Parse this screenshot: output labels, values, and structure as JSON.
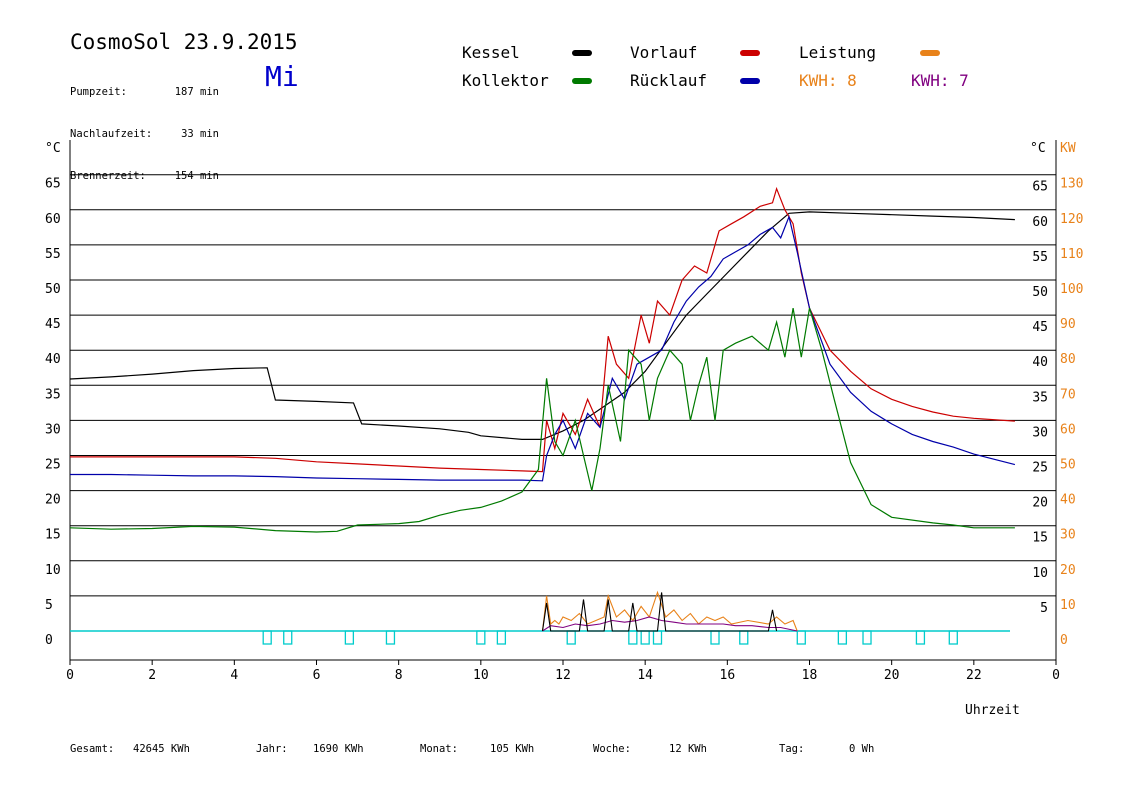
{
  "header": {
    "title": "CosmoSol 23.9.2015",
    "weekday": "Mi",
    "info": [
      {
        "label": "Pumpzeit:",
        "value": "187 min"
      },
      {
        "label": "Nachlaufzeit:",
        "value": "33 min"
      },
      {
        "label": "Brennerzeit:",
        "value": "154 min"
      }
    ]
  },
  "legend": {
    "kessel": "Kessel",
    "kollektor": "Kollektor",
    "vorlauf": "Vorlauf",
    "ruecklauf": "Rücklauf",
    "leistung": "Leistung",
    "kwh1": "KWH: 8",
    "kwh2": "KWH: 7"
  },
  "colors": {
    "kessel": "#000000",
    "kollektor": "#007a00",
    "vorlauf": "#cc0000",
    "ruecklauf": "#0000aa",
    "leistung": "#e8821a",
    "kwh2": "#800080",
    "pump": "#00cccc"
  },
  "footer": {
    "gesamt_label": "Gesamt:",
    "gesamt_value": "42645 KWh",
    "jahr_label": "Jahr:",
    "jahr_value": "1690 KWh",
    "monat_label": "Monat:",
    "monat_value": "105 KWh",
    "woche_label": "Woche:",
    "woche_value": "12 KWh",
    "tag_label": "Tag:",
    "tag_value": "0 Wh"
  },
  "chart_data": {
    "type": "line",
    "xlabel": "Uhrzeit",
    "ylabel_left": "°C",
    "ylabel_right_1": "°C",
    "ylabel_right_2": "KW",
    "xlim": [
      0,
      24
    ],
    "ylim": [
      0,
      65
    ],
    "x_ticks": [
      "0",
      "2",
      "4",
      "6",
      "8",
      "10",
      "12",
      "14",
      "16",
      "18",
      "20",
      "22",
      "0"
    ],
    "y_ticks_left": [
      "0",
      "5",
      "10",
      "15",
      "20",
      "25",
      "30",
      "35",
      "40",
      "45",
      "50",
      "55",
      "60",
      "65"
    ],
    "y_ticks_right": [
      "5",
      "10",
      "15",
      "20",
      "25",
      "30",
      "35",
      "40",
      "45",
      "50",
      "55",
      "60",
      "65"
    ],
    "y_ticks_kw": [
      "0",
      "10",
      "20",
      "30",
      "40",
      "50",
      "60",
      "70",
      "80",
      "90",
      "100",
      "110",
      "120",
      "130"
    ],
    "grid": true,
    "series": [
      {
        "name": "Kessel",
        "color": "#000000",
        "points": [
          [
            0,
            35.9
          ],
          [
            1,
            36.2
          ],
          [
            2,
            36.6
          ],
          [
            3,
            37.1
          ],
          [
            4,
            37.4
          ],
          [
            4.8,
            37.5
          ],
          [
            5,
            32.9
          ],
          [
            6,
            32.7
          ],
          [
            6.9,
            32.5
          ],
          [
            7.1,
            29.5
          ],
          [
            8,
            29.2
          ],
          [
            9,
            28.8
          ],
          [
            9.7,
            28.3
          ],
          [
            10,
            27.8
          ],
          [
            11,
            27.3
          ],
          [
            11.5,
            27.3
          ],
          [
            12,
            28.5
          ],
          [
            12.5,
            30
          ],
          [
            13,
            32
          ],
          [
            13.5,
            34
          ],
          [
            14,
            37
          ],
          [
            14.5,
            41
          ],
          [
            15,
            45
          ],
          [
            15.5,
            48
          ],
          [
            16,
            51
          ],
          [
            16.5,
            54
          ],
          [
            17,
            57
          ],
          [
            17.5,
            59.5
          ],
          [
            18,
            59.7
          ],
          [
            19,
            59.5
          ],
          [
            20,
            59.3
          ],
          [
            21,
            59.1
          ],
          [
            22,
            58.9
          ],
          [
            23,
            58.6
          ]
        ]
      },
      {
        "name": "Vorlauf",
        "color": "#cc0000",
        "points": [
          [
            0,
            24.8
          ],
          [
            1,
            24.8
          ],
          [
            2,
            24.8
          ],
          [
            3,
            24.8
          ],
          [
            4,
            24.8
          ],
          [
            5,
            24.6
          ],
          [
            6,
            24.1
          ],
          [
            7,
            23.8
          ],
          [
            8,
            23.5
          ],
          [
            9,
            23.2
          ],
          [
            10,
            23.0
          ],
          [
            11,
            22.8
          ],
          [
            11.5,
            22.7
          ],
          [
            11.6,
            30
          ],
          [
            11.8,
            26
          ],
          [
            12,
            31
          ],
          [
            12.3,
            28
          ],
          [
            12.6,
            33
          ],
          [
            12.9,
            29
          ],
          [
            13.1,
            42
          ],
          [
            13.3,
            38
          ],
          [
            13.6,
            36
          ],
          [
            13.9,
            45
          ],
          [
            14.1,
            41
          ],
          [
            14.3,
            47
          ],
          [
            14.6,
            45
          ],
          [
            14.9,
            50
          ],
          [
            15.2,
            52
          ],
          [
            15.5,
            51
          ],
          [
            15.8,
            57
          ],
          [
            16.1,
            58
          ],
          [
            16.4,
            59
          ],
          [
            16.8,
            60.5
          ],
          [
            17.1,
            61
          ],
          [
            17.2,
            63
          ],
          [
            17.4,
            60
          ],
          [
            17.6,
            58
          ],
          [
            17.8,
            51
          ],
          [
            18,
            46
          ],
          [
            18.5,
            40
          ],
          [
            19,
            37
          ],
          [
            19.5,
            34.5
          ],
          [
            20,
            33
          ],
          [
            20.5,
            32
          ],
          [
            21,
            31.2
          ],
          [
            21.5,
            30.6
          ],
          [
            22,
            30.3
          ],
          [
            23,
            29.9
          ]
        ]
      },
      {
        "name": "Rücklauf",
        "color": "#0000aa",
        "points": [
          [
            0,
            22.3
          ],
          [
            1,
            22.3
          ],
          [
            2,
            22.2
          ],
          [
            3,
            22.1
          ],
          [
            4,
            22.1
          ],
          [
            5,
            22.0
          ],
          [
            6,
            21.8
          ],
          [
            7,
            21.7
          ],
          [
            8,
            21.6
          ],
          [
            9,
            21.5
          ],
          [
            10,
            21.5
          ],
          [
            11,
            21.5
          ],
          [
            11.5,
            21.4
          ],
          [
            11.6,
            25
          ],
          [
            11.8,
            28
          ],
          [
            12,
            30
          ],
          [
            12.3,
            26
          ],
          [
            12.6,
            31
          ],
          [
            12.9,
            29
          ],
          [
            13.2,
            36
          ],
          [
            13.5,
            33
          ],
          [
            13.8,
            38
          ],
          [
            14.1,
            39
          ],
          [
            14.4,
            40
          ],
          [
            14.7,
            44
          ],
          [
            15,
            47
          ],
          [
            15.3,
            49
          ],
          [
            15.6,
            50.5
          ],
          [
            15.9,
            53
          ],
          [
            16.2,
            54
          ],
          [
            16.5,
            55
          ],
          [
            16.8,
            56.5
          ],
          [
            17.1,
            57.5
          ],
          [
            17.3,
            56
          ],
          [
            17.5,
            59
          ],
          [
            17.7,
            54
          ],
          [
            18,
            46
          ],
          [
            18.5,
            38
          ],
          [
            19,
            34
          ],
          [
            19.5,
            31.3
          ],
          [
            20,
            29.5
          ],
          [
            20.5,
            28
          ],
          [
            21,
            27
          ],
          [
            21.5,
            26.2
          ],
          [
            22,
            25.2
          ],
          [
            23,
            23.7
          ]
        ]
      },
      {
        "name": "Kollektor",
        "color": "#007a00",
        "points": [
          [
            0,
            14.7
          ],
          [
            1,
            14.5
          ],
          [
            2,
            14.6
          ],
          [
            3,
            14.9
          ],
          [
            4,
            14.8
          ],
          [
            5,
            14.3
          ],
          [
            6,
            14.1
          ],
          [
            6.5,
            14.2
          ],
          [
            7,
            15.1
          ],
          [
            8,
            15.3
          ],
          [
            8.5,
            15.6
          ],
          [
            9,
            16.5
          ],
          [
            9.5,
            17.2
          ],
          [
            10,
            17.6
          ],
          [
            10.5,
            18.5
          ],
          [
            11,
            19.8
          ],
          [
            11.4,
            23
          ],
          [
            11.6,
            36
          ],
          [
            11.8,
            27
          ],
          [
            12,
            25
          ],
          [
            12.3,
            30
          ],
          [
            12.5,
            25
          ],
          [
            12.7,
            20
          ],
          [
            12.9,
            26
          ],
          [
            13.1,
            35
          ],
          [
            13.4,
            27
          ],
          [
            13.6,
            40
          ],
          [
            13.9,
            38
          ],
          [
            14.1,
            30
          ],
          [
            14.3,
            36
          ],
          [
            14.6,
            40
          ],
          [
            14.9,
            38
          ],
          [
            15.1,
            30
          ],
          [
            15.3,
            35
          ],
          [
            15.5,
            39
          ],
          [
            15.7,
            30
          ],
          [
            15.9,
            40
          ],
          [
            16.2,
            41
          ],
          [
            16.6,
            42
          ],
          [
            17,
            40
          ],
          [
            17.2,
            44
          ],
          [
            17.4,
            39
          ],
          [
            17.6,
            46
          ],
          [
            17.8,
            39
          ],
          [
            18,
            46
          ],
          [
            18.3,
            40
          ],
          [
            18.6,
            33
          ],
          [
            19,
            24
          ],
          [
            19.5,
            18
          ],
          [
            20,
            16.2
          ],
          [
            21,
            15.4
          ],
          [
            21.5,
            15.1
          ],
          [
            22,
            14.7
          ],
          [
            23,
            14.7
          ]
        ]
      }
    ],
    "leistung_series": [
      {
        "name": "Leistung",
        "color": "#e8821a",
        "hours": [
          11.5,
          11.6,
          11.7,
          11.8,
          11.9,
          12.0,
          12.2,
          12.4,
          12.6,
          12.8,
          13.0,
          13.1,
          13.3,
          13.5,
          13.7,
          13.9,
          14.1,
          14.3,
          14.5,
          14.7,
          14.9,
          15.1,
          15.3,
          15.5,
          15.7,
          15.9,
          16.1,
          16.5,
          17.0,
          17.2,
          17.4,
          17.6,
          17.7
        ],
        "kw": [
          0,
          10,
          2,
          3,
          2,
          4,
          3,
          5,
          2,
          3,
          4,
          10,
          4,
          6,
          3,
          7,
          4,
          11,
          4,
          6,
          3,
          5,
          2,
          4,
          3,
          4,
          2,
          3,
          2,
          4,
          2,
          3,
          0
        ]
      },
      {
        "name": "KWH: 7",
        "color": "#800080",
        "hours": [
          11.5,
          11.7,
          12.0,
          12.3,
          12.6,
          12.9,
          13.2,
          13.5,
          13.8,
          14.1,
          14.4,
          14.7,
          15.0,
          15.3,
          15.6,
          15.9,
          16.2,
          16.6,
          17.0,
          17.3,
          17.7
        ],
        "kw": [
          0,
          1.5,
          1,
          2,
          1.5,
          2,
          3,
          2.5,
          3,
          4,
          3,
          2.5,
          2,
          2,
          2,
          2,
          1.5,
          1.5,
          1,
          1,
          0
        ]
      },
      {
        "name": "Kessel",
        "color": "#000000",
        "hours": [
          11.5,
          11.6,
          11.7,
          12.4,
          12.5,
          12.6,
          13.0,
          13.1,
          13.2,
          13.6,
          13.7,
          13.8,
          14.3,
          14.4,
          14.5,
          17.0,
          17.1,
          17.2
        ],
        "kw": [
          0,
          8,
          0,
          0,
          9,
          0,
          0,
          9,
          0,
          0,
          8,
          0,
          0,
          11,
          0,
          0,
          6,
          0
        ]
      }
    ],
    "pump_markers": [
      4.8,
      5.3,
      6.8,
      7.8,
      10.0,
      10.5,
      12.2,
      13.7,
      14.0,
      14.3,
      15.7,
      16.4,
      17.8,
      18.8,
      19.4,
      20.7,
      21.5
    ]
  }
}
